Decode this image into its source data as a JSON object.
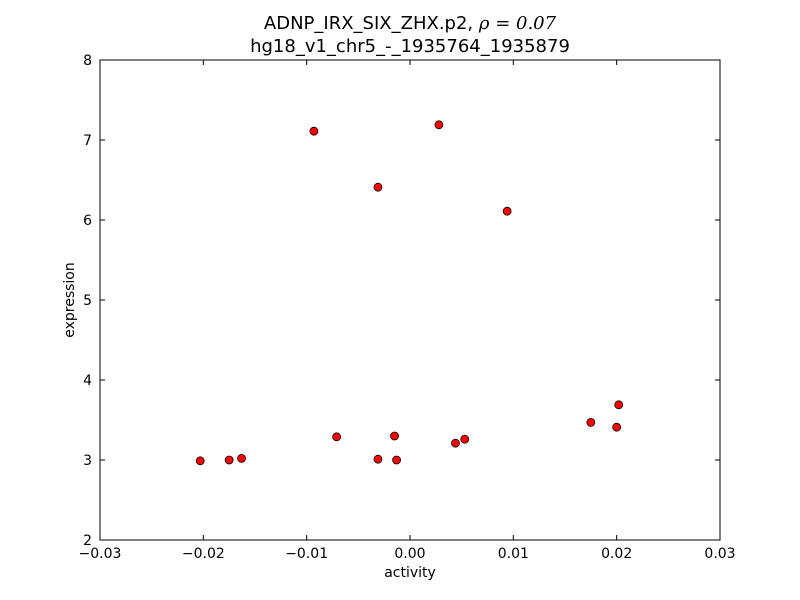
{
  "chart_data": {
    "type": "scatter",
    "title_line1_prefix": "ADNP_IRX_SIX_ZHX.p2, ",
    "title_rho_symbol": "ρ",
    "title_rho_value": " = 0.07",
    "title_line2": "hg18_v1_chr5_-_1935764_1935879",
    "xlabel": "activity",
    "ylabel": "expression",
    "xlim": [
      -0.03,
      0.03
    ],
    "ylim": [
      2,
      8
    ],
    "xticks": [
      -0.03,
      -0.02,
      -0.01,
      0.0,
      0.01,
      0.02,
      0.03
    ],
    "xtick_labels": [
      "−0.03",
      "−0.02",
      "−0.01",
      "0.00",
      "0.01",
      "0.02",
      "0.03"
    ],
    "yticks": [
      2,
      3,
      4,
      5,
      6,
      7,
      8
    ],
    "ytick_labels": [
      "2",
      "3",
      "4",
      "5",
      "6",
      "7",
      "8"
    ],
    "grid": false,
    "marker_color": "#ff0000",
    "marker_edge_color": "#000000",
    "points": [
      {
        "x": -0.0203,
        "y": 2.99
      },
      {
        "x": -0.0175,
        "y": 3.0
      },
      {
        "x": -0.0163,
        "y": 3.02
      },
      {
        "x": -0.0093,
        "y": 7.11
      },
      {
        "x": -0.0071,
        "y": 3.29
      },
      {
        "x": -0.0031,
        "y": 6.41
      },
      {
        "x": -0.0031,
        "y": 3.01
      },
      {
        "x": -0.0015,
        "y": 3.3
      },
      {
        "x": -0.0013,
        "y": 3.0
      },
      {
        "x": 0.0028,
        "y": 7.19
      },
      {
        "x": 0.0044,
        "y": 3.21
      },
      {
        "x": 0.0053,
        "y": 3.26
      },
      {
        "x": 0.0094,
        "y": 6.11
      },
      {
        "x": 0.0175,
        "y": 3.47
      },
      {
        "x": 0.02,
        "y": 3.41
      },
      {
        "x": 0.0202,
        "y": 3.69
      }
    ]
  }
}
